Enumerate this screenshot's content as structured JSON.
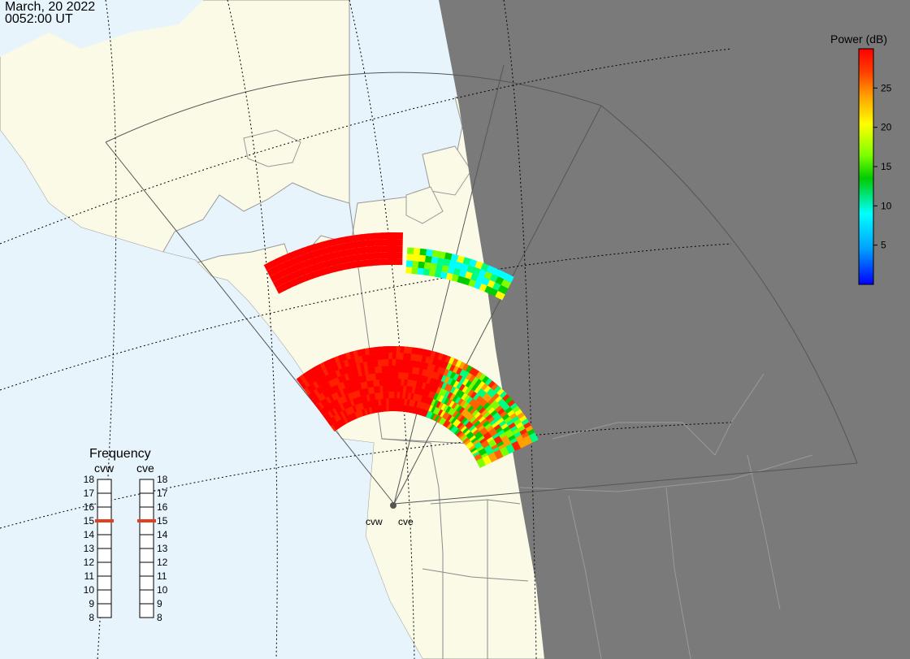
{
  "timestamp": {
    "date": "March, 20 2022",
    "time": "0052:00 UT"
  },
  "colorbar": {
    "title": "Power (dB)",
    "ticks": [
      "25",
      "20",
      "15",
      "10",
      "5"
    ],
    "tick_values": [
      25,
      20,
      15,
      10,
      5
    ],
    "range": [
      0,
      30
    ],
    "colors": [
      "#0000ff",
      "#00a0ff",
      "#00ffff",
      "#00ff80",
      "#00cc00",
      "#80ff00",
      "#ffff00",
      "#ffa000",
      "#ff4000",
      "#ff0000"
    ]
  },
  "frequency": {
    "title": "Frequency",
    "radars": [
      "cvw",
      "cve"
    ],
    "levels": [
      "18",
      "17",
      "16",
      "15",
      "14",
      "13",
      "12",
      "11",
      "10",
      "9",
      "8"
    ],
    "selected": {
      "cvw": 15,
      "cve": 15
    },
    "indicator_color": "#e04020"
  },
  "sites": {
    "west": "cvw",
    "east": "cve"
  },
  "colors": {
    "ocean": "#e8f4fc",
    "land": "#fafae6",
    "night": "#7a7a7a",
    "grid": "#000000"
  }
}
